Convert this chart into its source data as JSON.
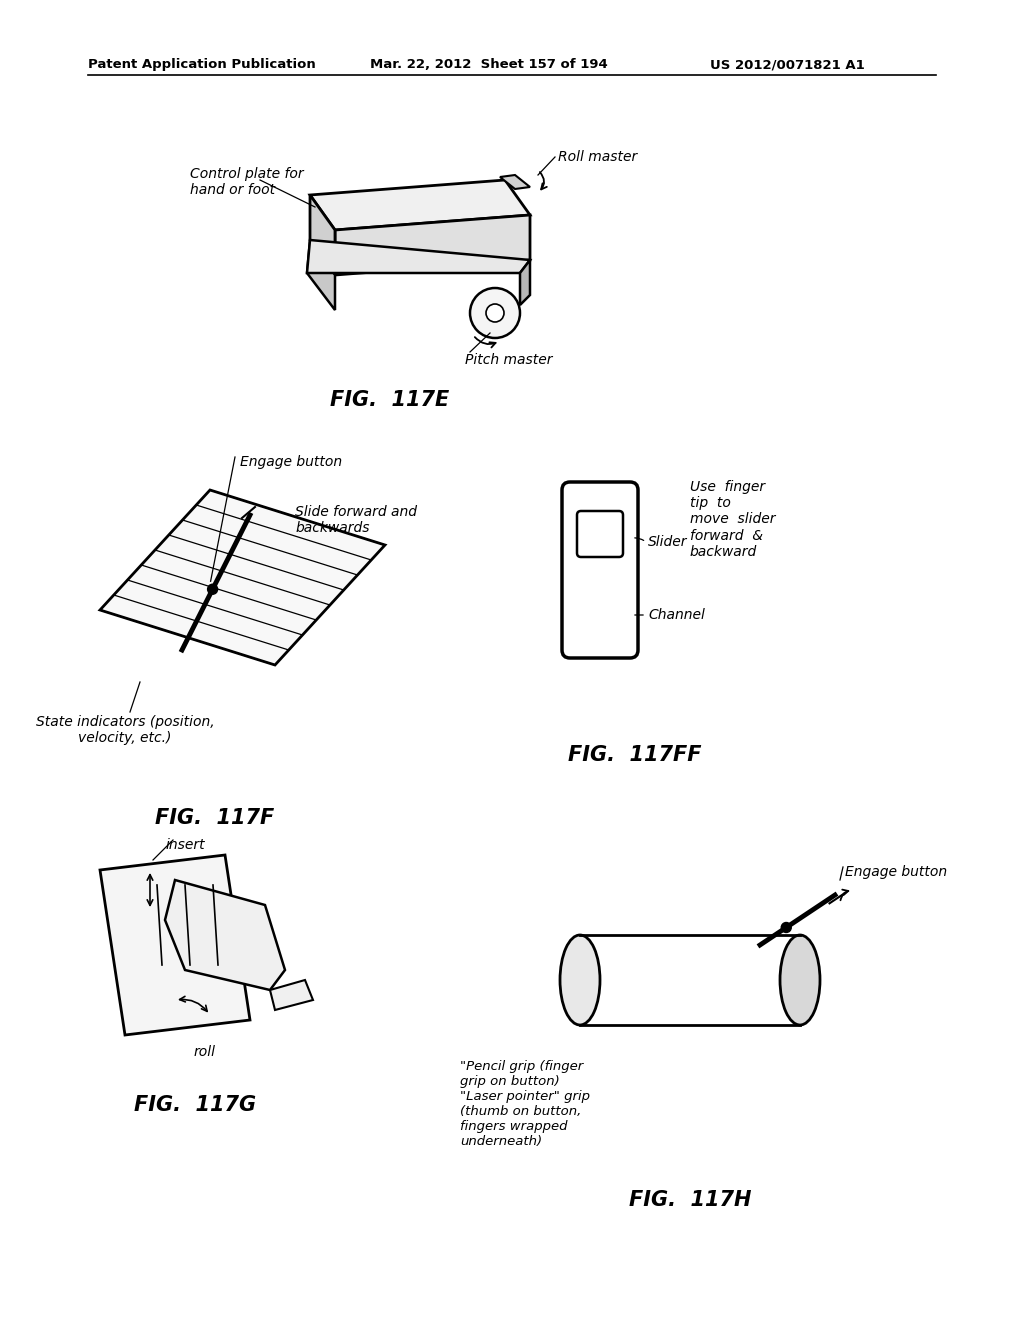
{
  "bg_color": "#ffffff",
  "header_left": "Patent Application Publication",
  "header_center": "Mar. 22, 2012  Sheet 157 of 194",
  "header_right": "US 2012/0071821 A1",
  "fig117E_label": "FIG.  117E",
  "fig117F_label": "FIG.  117F",
  "fig117FF_label": "FIG.  117FF",
  "fig117G_label": "FIG.  117G",
  "fig117H_label": "FIG.  117H",
  "label_roll_master": "Roll master",
  "label_control_plate": "Control plate for\nhand or foot",
  "label_pitch_master": "Pitch master",
  "label_engage_button_117f": "Engage button",
  "label_slide_forward": "Slide forward and\nbackwards",
  "label_state_indicators": "State indicators (position,\nvelocity, etc.)",
  "label_slider": "Slider",
  "label_channel": "Channel",
  "label_use_finger": "Use  finger\ntip  to\nmove  slider\nforward  &\nbackward",
  "label_insert": "insert",
  "label_roll": "roll",
  "label_engage_button_117h": "Engage button",
  "label_pencil_grip": "\"Pencil grip (finger\ngrip on button)\n\"Laser pointer\" grip\n(thumb on button,\nfingers wrapped\nunderneath)"
}
